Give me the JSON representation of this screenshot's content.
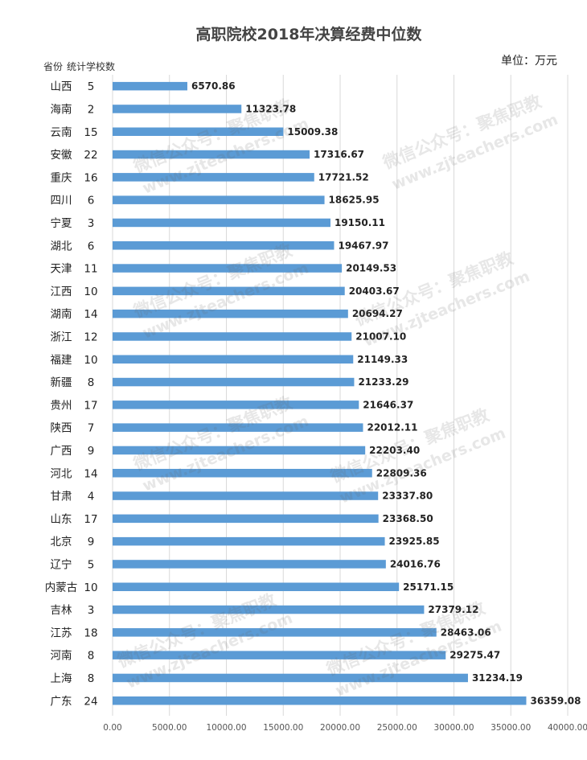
{
  "chart_data": {
    "type": "bar",
    "orientation": "horizontal",
    "title": "高职院校2018年决算经费中位数",
    "unit": "单位：万元",
    "row_header": {
      "province": "省份",
      "count": "统计学校数"
    },
    "categories": [
      "山西",
      "海南",
      "云南",
      "安徽",
      "重庆",
      "四川",
      "宁夏",
      "湖北",
      "天津",
      "江西",
      "湖南",
      "浙江",
      "福建",
      "新疆",
      "贵州",
      "陕西",
      "广西",
      "河北",
      "甘肃",
      "山东",
      "北京",
      "辽宁",
      "内蒙古",
      "吉林",
      "江苏",
      "河南",
      "上海",
      "广东"
    ],
    "school_counts": [
      5,
      2,
      15,
      22,
      16,
      6,
      3,
      6,
      11,
      10,
      14,
      12,
      10,
      8,
      17,
      7,
      9,
      14,
      4,
      17,
      9,
      5,
      10,
      3,
      18,
      8,
      8,
      24
    ],
    "values": [
      6570.86,
      11323.78,
      15009.38,
      17316.67,
      17721.52,
      18625.95,
      19150.11,
      19467.97,
      20149.53,
      20403.67,
      20694.27,
      21007.1,
      21149.33,
      21233.29,
      21646.37,
      22012.11,
      22203.4,
      22809.36,
      23337.8,
      23368.5,
      23925.85,
      24016.76,
      25171.15,
      27379.12,
      28463.06,
      29275.47,
      31234.19,
      36359.08
    ],
    "value_labels": [
      "6570.86",
      "11323.78",
      "15009.38",
      "17316.67",
      "17721.52",
      "18625.95",
      "19150.11",
      "19467.97",
      "20149.53",
      "20403.67",
      "20694.27",
      "21007.10",
      "21149.33",
      "21233.29",
      "21646.37",
      "22012.11",
      "22203.40",
      "22809.36",
      "23337.80",
      "23368.50",
      "23925.85",
      "24016.76",
      "25171.15",
      "27379.12",
      "28463.06",
      "29275.47",
      "31234.19",
      "36359.08"
    ],
    "xlim": [
      0,
      40000
    ],
    "x_ticks": [
      0,
      5000,
      10000,
      15000,
      20000,
      25000,
      30000,
      35000,
      40000
    ],
    "x_tick_labels": [
      "0.00",
      "5000.00",
      "10000.00",
      "15000.00",
      "20000.00",
      "25000.00",
      "30000.00",
      "35000.00",
      "40000.00"
    ],
    "grid": true,
    "bar_color": "#5b9bd5",
    "watermark": [
      "微信公众号：聚焦职教",
      "www.zjteachers.com"
    ]
  }
}
